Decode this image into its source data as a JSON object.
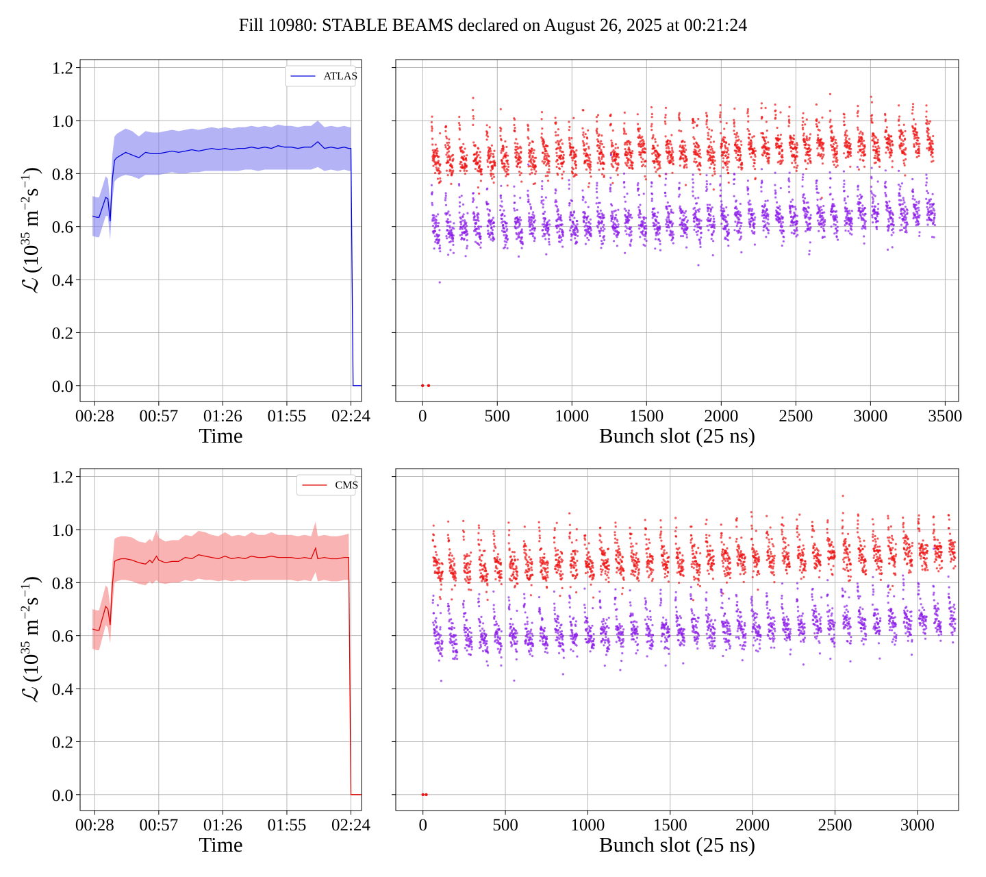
{
  "figure": {
    "title": "Fill 10980: STABLE BEAMS declared on August 26, 2025 at 00:21:24"
  },
  "chart_data": [
    {
      "id": "atlas-time",
      "type": "line",
      "xlabel": "Time",
      "ylabel_symbol": "ℒ",
      "ylabel_unit": "(10",
      "ylabel_exp": "35",
      "ylabel_rest": " m",
      "ylabel_exp2": "−2",
      "ylabel_rest2": "s",
      "ylabel_exp3": "−1",
      "ylabel_close": ")",
      "xticks": [
        "00:28",
        "00:57",
        "01:26",
        "01:55",
        "02:24"
      ],
      "yticks": [
        "0.0",
        "0.2",
        "0.4",
        "0.6",
        "0.8",
        "1.0",
        "1.2"
      ],
      "ylim": [
        -0.06,
        1.23
      ],
      "xlim_minutes": [
        21.4,
        148.8
      ],
      "legend": "ATLAS",
      "legend_position": "upper right",
      "color": "#0000dd",
      "band_color": "#8080ee",
      "grid": true,
      "series": [
        {
          "name": "ATLAS",
          "t_minutes": [
            27,
            29,
            30,
            33,
            34,
            35,
            36,
            37,
            38,
            40,
            42,
            45,
            48,
            51,
            54,
            57,
            60,
            63,
            66,
            69,
            72,
            75,
            78,
            81,
            84,
            87,
            90,
            93,
            96,
            99,
            102,
            105,
            108,
            111,
            114,
            117,
            120,
            123,
            126,
            129,
            132,
            135,
            138,
            141,
            143,
            144,
            145,
            146,
            149
          ],
          "values": [
            0.64,
            0.635,
            0.635,
            0.71,
            0.705,
            0.62,
            0.78,
            0.85,
            0.86,
            0.87,
            0.88,
            0.87,
            0.86,
            0.88,
            0.875,
            0.875,
            0.88,
            0.885,
            0.88,
            0.885,
            0.89,
            0.885,
            0.89,
            0.895,
            0.89,
            0.895,
            0.89,
            0.895,
            0.895,
            0.9,
            0.895,
            0.9,
            0.895,
            0.905,
            0.9,
            0.9,
            0.895,
            0.9,
            0.9,
            0.92,
            0.895,
            0.9,
            0.895,
            0.9,
            0.895,
            0.895,
            0.0,
            0.0,
            0.0
          ],
          "band_lo": [
            0.565,
            0.56,
            0.56,
            0.64,
            0.64,
            0.55,
            0.7,
            0.77,
            0.78,
            0.79,
            0.795,
            0.79,
            0.78,
            0.795,
            0.795,
            0.795,
            0.8,
            0.805,
            0.8,
            0.8,
            0.805,
            0.805,
            0.81,
            0.81,
            0.81,
            0.81,
            0.81,
            0.81,
            0.815,
            0.815,
            0.81,
            0.815,
            0.815,
            0.815,
            0.815,
            0.815,
            0.815,
            0.815,
            0.815,
            0.825,
            0.81,
            0.815,
            0.81,
            0.815,
            0.81,
            0.81,
            0.0,
            0.0,
            0.0
          ],
          "band_hi": [
            0.715,
            0.71,
            0.71,
            0.79,
            0.78,
            0.69,
            0.87,
            0.94,
            0.95,
            0.96,
            0.97,
            0.96,
            0.94,
            0.96,
            0.955,
            0.955,
            0.96,
            0.965,
            0.96,
            0.965,
            0.97,
            0.965,
            0.97,
            0.975,
            0.97,
            0.975,
            0.97,
            0.975,
            0.975,
            0.98,
            0.975,
            0.98,
            0.975,
            0.985,
            0.98,
            0.98,
            0.975,
            0.98,
            0.98,
            1.0,
            0.975,
            0.98,
            0.975,
            0.98,
            0.975,
            0.975,
            0.0,
            0.0,
            0.0
          ]
        }
      ]
    },
    {
      "id": "atlas-bunch",
      "type": "scatter",
      "xlabel": "Bunch slot (25 ns)",
      "xticks": [
        0,
        500,
        1000,
        1500,
        2000,
        2500,
        3000,
        3500
      ],
      "xlim": [
        -180,
        3590
      ],
      "ylim": [
        -0.06,
        1.23
      ],
      "grid": true,
      "seed": 1789,
      "x_max": 3440,
      "series": [
        {
          "name": "",
          "color": "#ee1111",
          "level": 0.88,
          "step": 0.009
        },
        {
          "name": "",
          "color": "#8a1be8",
          "level": 0.62,
          "step": 0.007
        }
      ],
      "zero_points_x": [
        0,
        40
      ]
    },
    {
      "id": "cms-time",
      "type": "line",
      "xlabel": "Time",
      "ylabel_symbol": "ℒ",
      "ylabel_unit": "(10",
      "ylabel_exp": "35",
      "ylabel_rest": " m",
      "ylabel_exp2": "−2",
      "ylabel_rest2": "s",
      "ylabel_exp3": "−1",
      "ylabel_close": ")",
      "xticks": [
        "00:28",
        "00:57",
        "01:26",
        "01:55",
        "02:24"
      ],
      "yticks": [
        "0.0",
        "0.2",
        "0.4",
        "0.6",
        "0.8",
        "1.0",
        "1.2"
      ],
      "ylim": [
        -0.06,
        1.23
      ],
      "xlim_minutes": [
        21.4,
        148.8
      ],
      "legend": "CMS",
      "legend_position": "upper right",
      "color": "#dd0000",
      "band_color": "#f58080",
      "grid": true,
      "series": [
        {
          "name": "CMS",
          "t_minutes": [
            27,
            29,
            30,
            33,
            34,
            35,
            36,
            37,
            38,
            40,
            42,
            45,
            48,
            51,
            53,
            54,
            56,
            57,
            60,
            63,
            66,
            69,
            72,
            75,
            78,
            81,
            84,
            87,
            90,
            93,
            96,
            99,
            102,
            105,
            108,
            111,
            114,
            117,
            120,
            123,
            126,
            128,
            129,
            132,
            135,
            138,
            141,
            143,
            144,
            145,
            146,
            149
          ],
          "values": [
            0.625,
            0.62,
            0.62,
            0.71,
            0.7,
            0.64,
            0.79,
            0.88,
            0.885,
            0.89,
            0.89,
            0.885,
            0.875,
            0.87,
            0.885,
            0.875,
            0.9,
            0.885,
            0.875,
            0.88,
            0.88,
            0.895,
            0.89,
            0.905,
            0.9,
            0.895,
            0.89,
            0.9,
            0.89,
            0.895,
            0.89,
            0.9,
            0.895,
            0.895,
            0.9,
            0.895,
            0.895,
            0.895,
            0.89,
            0.895,
            0.89,
            0.93,
            0.89,
            0.895,
            0.89,
            0.89,
            0.895,
            0.895,
            0.0,
            0.0,
            0.0,
            0.0
          ],
          "band_lo": [
            0.55,
            0.545,
            0.545,
            0.64,
            0.63,
            0.57,
            0.71,
            0.8,
            0.805,
            0.81,
            0.81,
            0.805,
            0.795,
            0.79,
            0.805,
            0.795,
            0.81,
            0.8,
            0.795,
            0.8,
            0.8,
            0.81,
            0.805,
            0.815,
            0.81,
            0.81,
            0.805,
            0.81,
            0.805,
            0.81,
            0.805,
            0.81,
            0.81,
            0.81,
            0.81,
            0.81,
            0.81,
            0.81,
            0.805,
            0.81,
            0.805,
            0.84,
            0.805,
            0.81,
            0.805,
            0.805,
            0.81,
            0.81,
            0.0,
            0.0,
            0.0,
            0.0
          ],
          "band_hi": [
            0.7,
            0.695,
            0.695,
            0.79,
            0.78,
            0.71,
            0.87,
            0.965,
            0.97,
            0.975,
            0.975,
            0.97,
            0.955,
            0.95,
            0.965,
            0.955,
            1.0,
            0.97,
            0.955,
            0.96,
            0.96,
            0.98,
            0.975,
            0.995,
            0.99,
            0.98,
            0.975,
            0.99,
            0.975,
            0.98,
            0.975,
            0.99,
            0.98,
            0.98,
            0.99,
            0.98,
            0.98,
            0.98,
            0.975,
            0.98,
            0.975,
            1.03,
            0.975,
            0.98,
            0.975,
            0.975,
            0.98,
            0.985,
            0.0,
            0.0,
            0.0,
            0.0
          ]
        }
      ]
    },
    {
      "id": "cms-bunch",
      "type": "scatter",
      "xlabel": "Bunch slot (25 ns)",
      "xticks": [
        0,
        500,
        1000,
        1500,
        2000,
        2500,
        3000
      ],
      "xlim": [
        -165,
        3250
      ],
      "ylim": [
        -0.06,
        1.23
      ],
      "grid": true,
      "seed": 4242,
      "x_max": 3230,
      "series": [
        {
          "name": "",
          "color": "#ee1111",
          "level": 0.88,
          "step": 0.009
        },
        {
          "name": "",
          "color": "#8a1be8",
          "level": 0.62,
          "step": 0.007
        }
      ],
      "zero_points_x": [
        0,
        20
      ]
    }
  ]
}
